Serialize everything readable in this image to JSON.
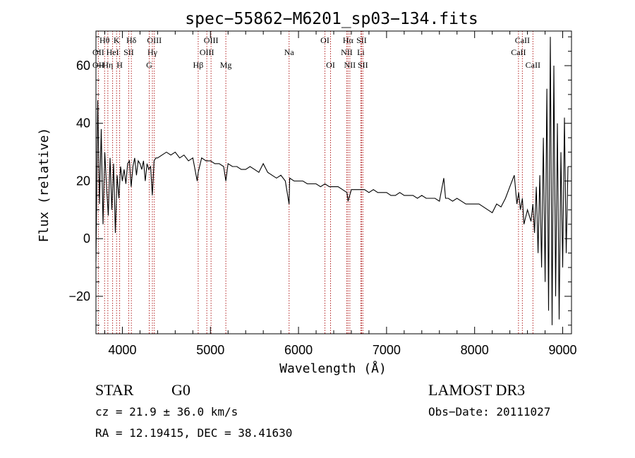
{
  "chart_data": {
    "type": "line",
    "title": "spec−55862−M6201_sp03−134.fits",
    "xlabel": "Wavelength (Å)",
    "ylabel": "Flux (relative)",
    "xlim": [
      3700,
      9100
    ],
    "ylim": [
      -33,
      72
    ],
    "xticks": [
      4000,
      5000,
      6000,
      7000,
      8000,
      9000
    ],
    "yticks": [
      -20,
      0,
      20,
      40,
      60
    ],
    "ytick_labels": [
      "−20",
      "0",
      "20",
      "40",
      "60"
    ],
    "series": [
      {
        "name": "flux",
        "x": [
          3700,
          3720,
          3740,
          3760,
          3780,
          3800,
          3820,
          3840,
          3860,
          3880,
          3900,
          3920,
          3940,
          3960,
          3980,
          4000,
          4020,
          4040,
          4060,
          4080,
          4100,
          4120,
          4140,
          4160,
          4180,
          4200,
          4220,
          4240,
          4260,
          4280,
          4300,
          4320,
          4340,
          4360,
          4380,
          4400,
          4450,
          4500,
          4550,
          4600,
          4650,
          4700,
          4750,
          4800,
          4850,
          4861,
          4900,
          4950,
          5000,
          5050,
          5100,
          5150,
          5175,
          5200,
          5250,
          5300,
          5350,
          5400,
          5450,
          5500,
          5550,
          5600,
          5650,
          5700,
          5750,
          5800,
          5850,
          5893,
          5900,
          5950,
          6000,
          6050,
          6100,
          6150,
          6200,
          6250,
          6300,
          6350,
          6400,
          6450,
          6500,
          6550,
          6563,
          6600,
          6650,
          6700,
          6750,
          6800,
          6850,
          6900,
          6950,
          7000,
          7050,
          7100,
          7150,
          7200,
          7250,
          7300,
          7350,
          7400,
          7450,
          7500,
          7550,
          7600,
          7650,
          7670,
          7700,
          7750,
          7800,
          7850,
          7900,
          7950,
          8000,
          8050,
          8100,
          8150,
          8200,
          8250,
          8300,
          8350,
          8400,
          8450,
          8480,
          8500,
          8520,
          8542,
          8560,
          8600,
          8640,
          8662,
          8680,
          8700,
          8720,
          8740,
          8760,
          8780,
          8800,
          8820,
          8840,
          8860,
          8880,
          8900,
          8920,
          8940,
          8960,
          8980,
          9000,
          9020,
          9040,
          9060
        ],
        "y": [
          -8,
          48,
          12,
          38,
          5,
          30,
          18,
          8,
          28,
          10,
          26,
          2,
          22,
          14,
          25,
          20,
          24,
          19,
          26,
          27,
          18,
          25,
          28,
          22,
          27,
          26,
          24,
          27,
          20,
          26,
          24,
          25,
          15,
          27,
          28,
          28,
          29,
          30,
          29,
          30,
          28,
          29,
          27,
          28,
          20,
          23,
          28,
          27,
          27,
          26,
          26,
          25,
          20,
          26,
          25,
          25,
          24,
          24,
          25,
          24,
          23,
          26,
          23,
          22,
          21,
          22,
          20,
          12,
          21,
          20,
          20,
          20,
          19,
          19,
          19,
          18,
          19,
          18,
          18,
          18,
          17,
          16,
          13,
          17,
          17,
          17,
          17,
          16,
          17,
          16,
          16,
          16,
          15,
          15,
          16,
          15,
          15,
          15,
          14,
          15,
          14,
          14,
          14,
          13,
          21,
          14,
          14,
          13,
          14,
          13,
          12,
          12,
          12,
          12,
          11,
          10,
          9,
          12,
          11,
          14,
          18,
          22,
          12,
          16,
          10,
          14,
          5,
          10,
          6,
          12,
          2,
          18,
          -5,
          22,
          -10,
          35,
          -15,
          52,
          -25,
          70,
          -30,
          60,
          -20,
          40,
          -28,
          30,
          -10,
          42,
          -5,
          25
        ]
      }
    ],
    "lines": [
      {
        "name": "Hθ",
        "x": 3798,
        "row": 0
      },
      {
        "name": "Hη",
        "x": 3835,
        "row": 2
      },
      {
        "name": "OII",
        "x": 3727,
        "row": 1
      },
      {
        "name": "OII",
        "x": 3727,
        "row": 2
      },
      {
        "name": "HeI",
        "x": 3889,
        "row": 1
      },
      {
        "name": "K",
        "x": 3934,
        "row": 0
      },
      {
        "name": "H",
        "x": 3969,
        "row": 2
      },
      {
        "name": "SII",
        "x": 4072,
        "row": 1
      },
      {
        "name": "Hδ",
        "x": 4102,
        "row": 0
      },
      {
        "name": "OIII",
        "x": 4363,
        "row": 0
      },
      {
        "name": "Hγ",
        "x": 4341,
        "row": 1
      },
      {
        "name": "G",
        "x": 4305,
        "row": 2
      },
      {
        "name": "Hβ",
        "x": 4861,
        "row": 2
      },
      {
        "name": "OIII",
        "x": 5007,
        "row": 0
      },
      {
        "name": "OIII",
        "x": 4959,
        "row": 1
      },
      {
        "name": "Mg",
        "x": 5175,
        "row": 2
      },
      {
        "name": "Na",
        "x": 5893,
        "row": 1
      },
      {
        "name": "OI",
        "x": 6300,
        "row": 0
      },
      {
        "name": "OI",
        "x": 6364,
        "row": 2
      },
      {
        "name": "Hα",
        "x": 6563,
        "row": 0
      },
      {
        "name": "NII",
        "x": 6548,
        "row": 1
      },
      {
        "name": "NII",
        "x": 6583,
        "row": 2
      },
      {
        "name": "SII",
        "x": 6716,
        "row": 0
      },
      {
        "name": "Li",
        "x": 6708,
        "row": 1
      },
      {
        "name": "SII",
        "x": 6731,
        "row": 2
      },
      {
        "name": "CaII",
        "x": 8542,
        "row": 0
      },
      {
        "name": "CaII",
        "x": 8498,
        "row": 1
      },
      {
        "name": "CaII",
        "x": 8662,
        "row": 2
      }
    ]
  },
  "info": {
    "object_class": "STAR",
    "subclass": "G0",
    "survey": "LAMOST DR3",
    "cz": "cz = 21.9 ± 36.0 km/s",
    "obs_date": "Obs−Date: 20111027",
    "coords": "RA =  12.19415, DEC =  38.41630"
  },
  "colors": {
    "line_marker": "#b22222",
    "spectrum": "#000000"
  }
}
